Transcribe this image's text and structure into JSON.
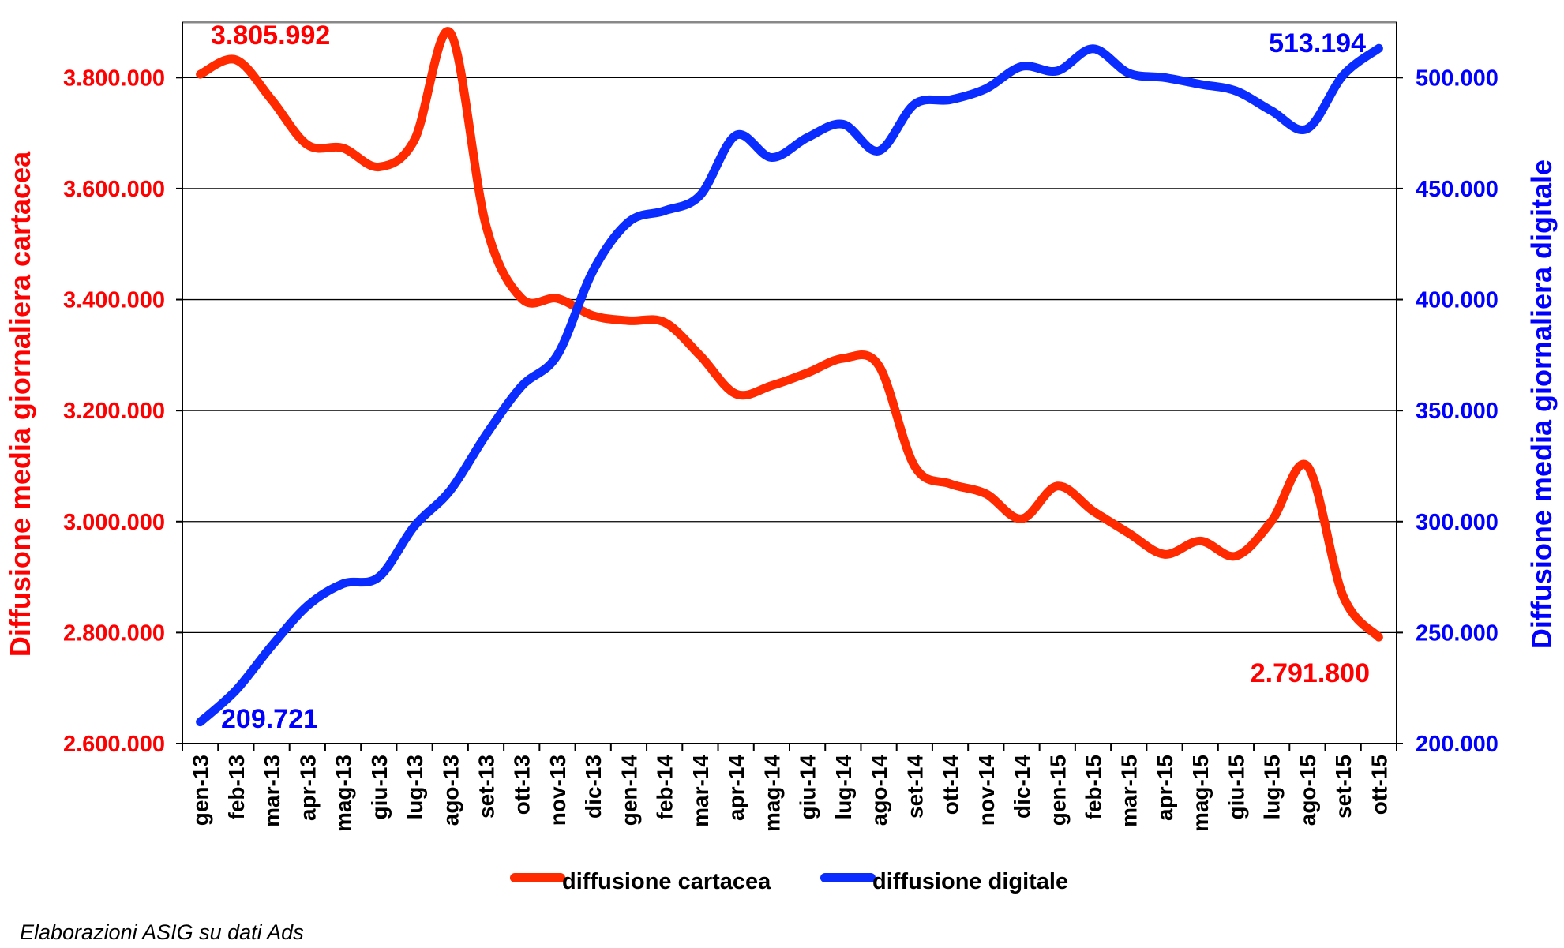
{
  "chart_data": {
    "type": "line",
    "title": "",
    "footer": "Elaborazioni ASIG su dati Ads",
    "categories": [
      "gen-13",
      "feb-13",
      "mar-13",
      "apr-13",
      "mag-13",
      "giu-13",
      "lug-13",
      "ago-13",
      "set-13",
      "ott-13",
      "nov-13",
      "dic-13",
      "gen-14",
      "feb-14",
      "mar-14",
      "apr-14",
      "mag-14",
      "giu-14",
      "lug-14",
      "ago-14",
      "set-14",
      "ott-14",
      "nov-14",
      "dic-14",
      "gen-15",
      "feb-15",
      "mar-15",
      "apr-15",
      "mag-15",
      "giu-15",
      "lug-15",
      "ago-15",
      "set-15",
      "ott-15"
    ],
    "y_left": {
      "label": "Diffusione media giornaliera cartacea",
      "range": [
        2600000,
        3900000
      ],
      "ticks": [
        2600000,
        2800000,
        3000000,
        3200000,
        3400000,
        3600000,
        3800000
      ],
      "tick_labels": [
        "2.600.000",
        "2.800.000",
        "3.000.000",
        "3.200.000",
        "3.400.000",
        "3.600.000",
        "3.800.000"
      ],
      "color": "#ff0000"
    },
    "y_right": {
      "label": "Diffusione media giornaliera digitale",
      "range": [
        200000,
        525000
      ],
      "ticks": [
        200000,
        250000,
        300000,
        350000,
        400000,
        450000,
        500000
      ],
      "tick_labels": [
        "200.000",
        "250.000",
        "300.000",
        "350.000",
        "400.000",
        "450.000",
        "500.000"
      ],
      "color": "#0000ff"
    },
    "grid": true,
    "legend_position": "bottom",
    "series": [
      {
        "name": "diffusione cartacea",
        "axis": "left",
        "color": "#ff2a00",
        "values": [
          3805992,
          3832000,
          3760000,
          3679000,
          3673000,
          3639000,
          3688000,
          3881000,
          3534000,
          3402000,
          3402000,
          3371000,
          3362000,
          3359000,
          3299000,
          3230000,
          3245000,
          3268000,
          3294000,
          3281000,
          3100000,
          3068000,
          3050000,
          3005000,
          3064000,
          3019000,
          2979000,
          2941000,
          2965000,
          2938000,
          3001000,
          3100000,
          2866000,
          2791800
        ]
      },
      {
        "name": "diffusione digitale",
        "axis": "right",
        "color": "#0a2cff",
        "values": [
          209721,
          224000,
          244000,
          262000,
          272000,
          275000,
          298000,
          314000,
          339000,
          361000,
          375000,
          413000,
          435000,
          440000,
          447000,
          474000,
          464000,
          473000,
          479000,
          467000,
          488000,
          490000,
          495000,
          505000,
          503000,
          513000,
          502000,
          500000,
          497000,
          494000,
          485000,
          477000,
          501000,
          513194
        ]
      }
    ],
    "annotations": {
      "cartacea_start": "3.805.992",
      "cartacea_end": "2.791.800",
      "digitale_start": "209.721",
      "digitale_end": "513.194"
    }
  }
}
